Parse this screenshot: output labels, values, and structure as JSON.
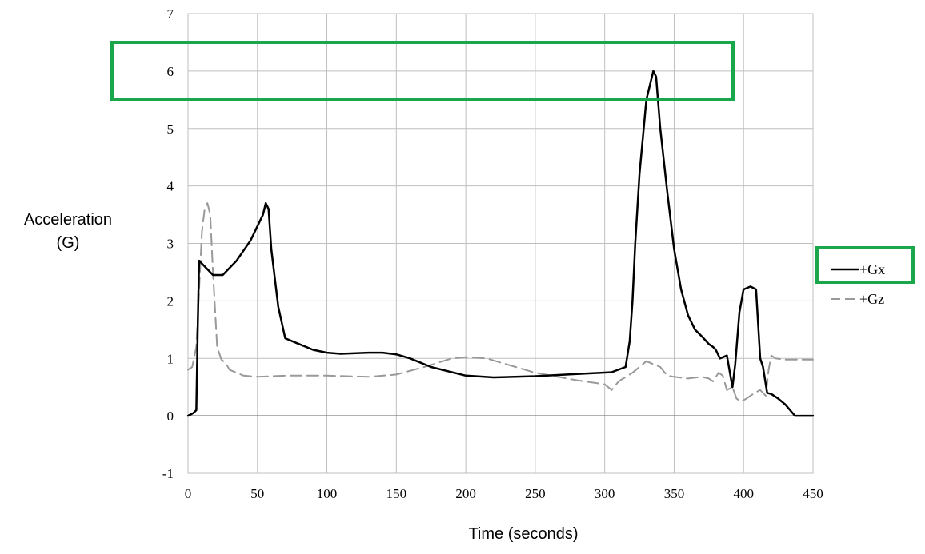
{
  "chart_data": {
    "type": "line",
    "xlabel": "Time (seconds)",
    "ylabel_lines": [
      "Acceleration",
      "(G)"
    ],
    "xlim": [
      0,
      450
    ],
    "ylim": [
      -1,
      7
    ],
    "xticks": [
      "0",
      "50",
      "100",
      "150",
      "200",
      "250",
      "300",
      "350",
      "400",
      "450"
    ],
    "yticks": [
      "-1",
      "0",
      "1",
      "2",
      "3",
      "4",
      "5",
      "6",
      "7"
    ],
    "grid": true,
    "legend_position": "right",
    "series": [
      {
        "name": "+Gx",
        "color": "#000000",
        "style": "solid",
        "x": [
          0,
          4,
          6,
          7,
          8,
          12,
          18,
          25,
          35,
          45,
          50,
          54,
          56,
          58,
          60,
          65,
          70,
          80,
          90,
          100,
          110,
          130,
          140,
          150,
          160,
          175,
          200,
          220,
          250,
          280,
          305,
          315,
          318,
          320,
          322,
          325,
          330,
          335,
          337,
          340,
          345,
          350,
          355,
          360,
          365,
          370,
          375,
          378,
          380,
          383,
          388,
          392,
          394,
          397,
          400,
          405,
          409,
          412,
          414,
          417,
          420,
          425,
          430,
          437,
          450
        ],
        "y": [
          0,
          0.05,
          0.1,
          1.5,
          2.7,
          2.6,
          2.45,
          2.45,
          2.7,
          3.05,
          3.3,
          3.5,
          3.7,
          3.6,
          2.9,
          1.9,
          1.35,
          1.25,
          1.15,
          1.1,
          1.08,
          1.1,
          1.1,
          1.07,
          1.0,
          0.85,
          0.7,
          0.67,
          0.69,
          0.73,
          0.76,
          0.85,
          1.3,
          2.0,
          3.0,
          4.2,
          5.5,
          6.0,
          5.9,
          5.0,
          3.9,
          2.9,
          2.2,
          1.75,
          1.5,
          1.38,
          1.25,
          1.2,
          1.15,
          1.0,
          1.05,
          0.5,
          0.9,
          1.8,
          2.2,
          2.25,
          2.2,
          1.0,
          0.85,
          0.4,
          0.38,
          0.3,
          0.2,
          0.0,
          0.0
        ],
        "highlight": true
      },
      {
        "name": "+Gz",
        "color": "#999999",
        "style": "dashed",
        "x": [
          0,
          3,
          6,
          8,
          10,
          12,
          14,
          16,
          18,
          21,
          24,
          27,
          30,
          40,
          50,
          70,
          100,
          130,
          150,
          170,
          190,
          200,
          215,
          250,
          280,
          300,
          305,
          310,
          320,
          330,
          335,
          340,
          345,
          350,
          360,
          370,
          375,
          378,
          382,
          385,
          388,
          392,
          395,
          398,
          402,
          408,
          412,
          416,
          418,
          420,
          423,
          430,
          440,
          450
        ],
        "y": [
          0.8,
          0.85,
          1.2,
          2.2,
          3.2,
          3.6,
          3.7,
          3.5,
          2.5,
          1.2,
          0.98,
          0.92,
          0.8,
          0.7,
          0.68,
          0.7,
          0.7,
          0.68,
          0.72,
          0.85,
          1.0,
          1.02,
          1.0,
          0.75,
          0.62,
          0.55,
          0.45,
          0.6,
          0.75,
          0.95,
          0.9,
          0.85,
          0.7,
          0.68,
          0.65,
          0.68,
          0.65,
          0.6,
          0.75,
          0.7,
          0.45,
          0.5,
          0.3,
          0.25,
          0.3,
          0.4,
          0.45,
          0.35,
          0.8,
          1.05,
          1.0,
          0.98,
          0.98,
          0.98
        ]
      }
    ]
  },
  "colors": {
    "highlight_box": "#1aa64b",
    "grid": "#bfbfbf",
    "axis": "#808080"
  }
}
